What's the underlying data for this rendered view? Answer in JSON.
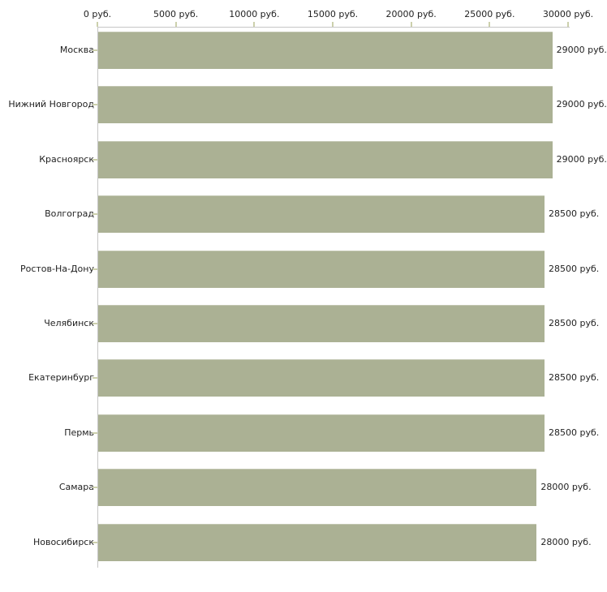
{
  "chart_data": {
    "type": "bar",
    "orientation": "horizontal",
    "title": "",
    "xlabel": "",
    "ylabel": "",
    "unit": "руб.",
    "categories": [
      "Москва",
      "Нижний Новгород",
      "Красноярск",
      "Волгоград",
      "Ростов-На-Дону",
      "Челябинск",
      "Екатеринбург",
      "Пермь",
      "Самара",
      "Новосибирск"
    ],
    "values": [
      29000,
      29000,
      29000,
      28500,
      28500,
      28500,
      28500,
      28500,
      28000,
      28000
    ],
    "value_labels": [
      "29000 руб.",
      "29000 руб.",
      "29000 руб.",
      "28500 руб.",
      "28500 руб.",
      "28500 руб.",
      "28500 руб.",
      "28500 руб.",
      "28000 руб.",
      "28000 руб."
    ],
    "x_axis": {
      "xlim": [
        0,
        30000
      ],
      "ticks": [
        0,
        5000,
        10000,
        15000,
        20000,
        25000,
        30000
      ],
      "tick_labels": [
        "0 руб.",
        "5000 руб.",
        "10000 руб.",
        "15000 руб.",
        "20000 руб.",
        "25000 руб.",
        "30000 руб."
      ],
      "position": "top"
    },
    "grid": false,
    "legend": false
  },
  "colors": {
    "background": "#ffffff",
    "bar_fill": "#abb194",
    "axis_line": "#c6c6c6",
    "tick_mark": "#ccd0ac",
    "text": "#1f1f1f"
  }
}
